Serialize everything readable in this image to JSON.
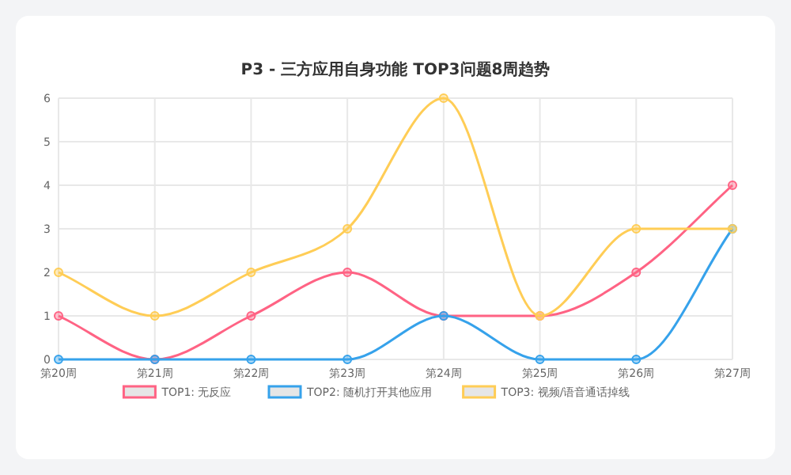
{
  "chart_data": {
    "type": "line",
    "title": "P3 - 三方应用自身功能 TOP3问题8周趋势",
    "categories": [
      "第20周",
      "第21周",
      "第22周",
      "第23周",
      "第24周",
      "第25周",
      "第26周",
      "第27周"
    ],
    "series": [
      {
        "name": "TOP1: 无反应",
        "color": "#ff6384",
        "values": [
          1,
          0,
          1,
          2,
          1,
          1,
          2,
          4
        ]
      },
      {
        "name": "TOP2: 随机打开其他应用",
        "color": "#36a2eb",
        "values": [
          0,
          0,
          0,
          0,
          1,
          0,
          0,
          3
        ]
      },
      {
        "name": "TOP3: 视频/语音通话掉线",
        "color": "#ffcd56",
        "values": [
          2,
          1,
          2,
          3,
          6,
          1,
          3,
          3
        ]
      }
    ],
    "ylim": [
      0,
      6
    ],
    "yticks": [
      0,
      1,
      2,
      3,
      4,
      5,
      6
    ],
    "grid": true,
    "legend": "bottom",
    "marker": "circle",
    "line_style": "solid"
  }
}
